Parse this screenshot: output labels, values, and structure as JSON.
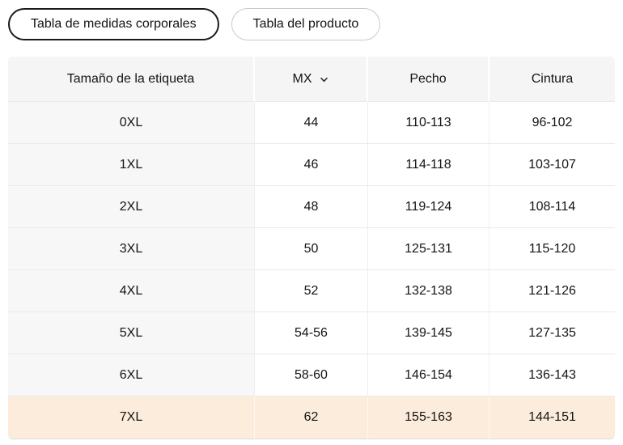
{
  "tabs": [
    {
      "label": "Tabla de medidas corporales",
      "selected": true
    },
    {
      "label": "Tabla del producto",
      "selected": false
    }
  ],
  "table": {
    "columns": [
      "Tamaño de la etiqueta",
      "MX",
      "Pecho",
      "Cintura"
    ],
    "mx_has_dropdown": true,
    "rows": [
      {
        "size": "0XL",
        "mx": "44",
        "pecho": "110-113",
        "cintura": "96-102",
        "highlighted": false
      },
      {
        "size": "1XL",
        "mx": "46",
        "pecho": "114-118",
        "cintura": "103-107",
        "highlighted": false
      },
      {
        "size": "2XL",
        "mx": "48",
        "pecho": "119-124",
        "cintura": "108-114",
        "highlighted": false
      },
      {
        "size": "3XL",
        "mx": "50",
        "pecho": "125-131",
        "cintura": "115-120",
        "highlighted": false
      },
      {
        "size": "4XL",
        "mx": "52",
        "pecho": "132-138",
        "cintura": "121-126",
        "highlighted": false
      },
      {
        "size": "5XL",
        "mx": "54-56",
        "pecho": "139-145",
        "cintura": "127-135",
        "highlighted": false
      },
      {
        "size": "6XL",
        "mx": "58-60",
        "pecho": "146-154",
        "cintura": "136-143",
        "highlighted": false
      },
      {
        "size": "7XL",
        "mx": "62",
        "pecho": "155-163",
        "cintura": "144-151",
        "highlighted": true
      }
    ]
  },
  "colors": {
    "highlight_row": "#fcecdb",
    "header_bg": "#f5f5f6",
    "first_col_bg": "#f7f7f8",
    "selected_tab_border": "#1a1a1a",
    "unselected_tab_border": "#c9c9cc",
    "row_divider": "#e9e9eb",
    "text": "#141414"
  }
}
